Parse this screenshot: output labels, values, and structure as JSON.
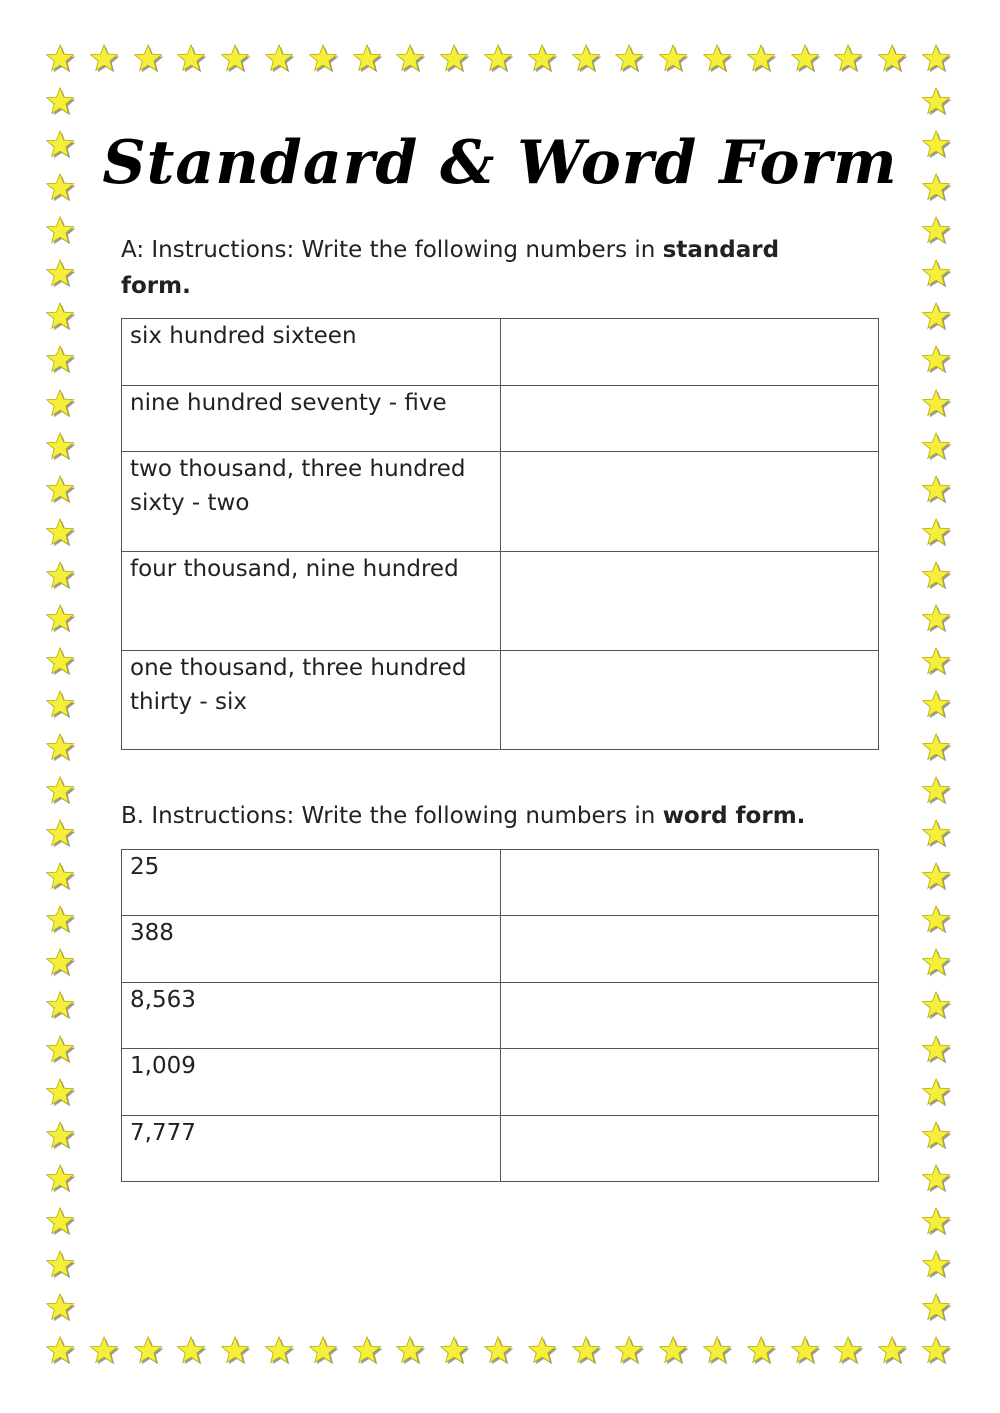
{
  "title": "Standard & Word Form",
  "colors": {
    "star_fill": "#f5ee3a",
    "star_outline": "#b0a800",
    "star_shadow": "#9a9a9a"
  },
  "section_a": {
    "instruction": "A: Instructions: Write the following numbers in ",
    "instruction_bold": "standard form.",
    "rows": [
      "six hundred sixteen",
      "nine hundred seventy - five",
      "two thousand, three hundred sixty - two",
      "four thousand, nine hundred",
      "one thousand, three hundred thirty - six"
    ]
  },
  "section_b": {
    "instruction": "B. Instructions: Write the following numbers in ",
    "instruction_bold": "word form.",
    "rows": [
      "25",
      "388",
      "8,563",
      "1,009",
      "7,777"
    ]
  }
}
